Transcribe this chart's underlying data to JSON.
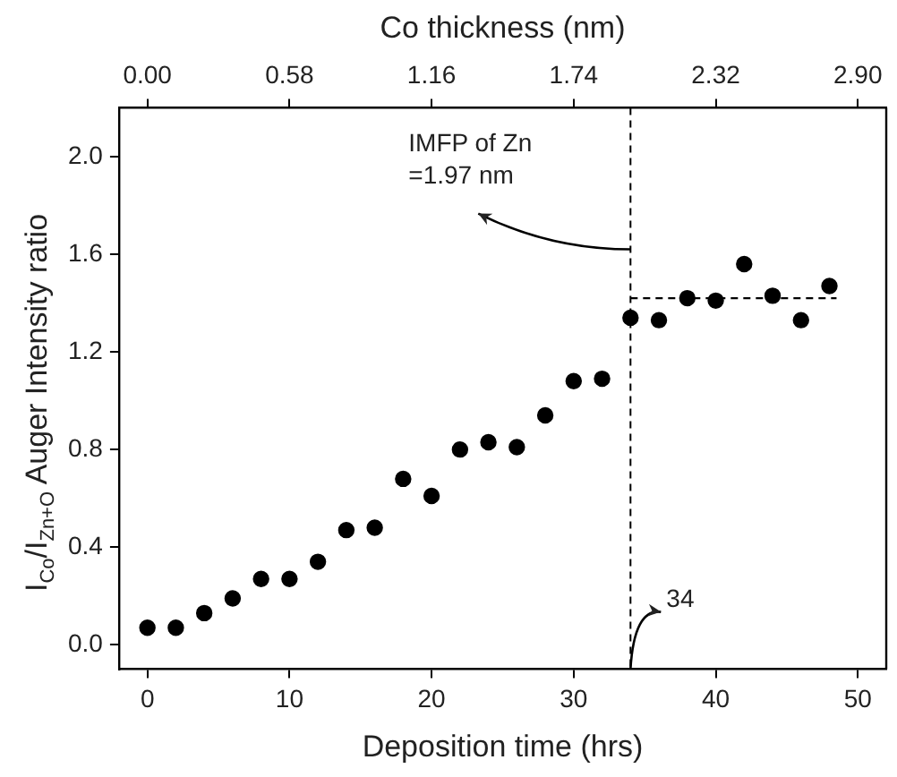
{
  "chart_data": {
    "type": "scatter",
    "xlabel": "Deposition time (hrs)",
    "x2label": "Co thickness (nm)",
    "ylabel": "I$_{Co}$/I$_{Zn+O}$ Auger Intensity ratio",
    "xlim": [
      -2,
      52
    ],
    "xticks": [
      0,
      10,
      20,
      30,
      40,
      50
    ],
    "x2lim": [
      -0.116,
      3.016
    ],
    "x2ticks": [
      {
        "value": 0,
        "label": "0.00"
      },
      {
        "value": 0.58,
        "label": "0.58"
      },
      {
        "value": 1.16,
        "label": "1.16"
      },
      {
        "value": 1.74,
        "label": "1.74"
      },
      {
        "value": 2.32,
        "label": "2.32"
      },
      {
        "value": 2.9,
        "label": "2.90"
      }
    ],
    "ylim": [
      -0.1,
      2.2
    ],
    "yticks": [
      {
        "value": 0,
        "label": "0.0"
      },
      {
        "value": 0.4,
        "label": "0.4"
      },
      {
        "value": 0.8,
        "label": "0.8"
      },
      {
        "value": 1.2,
        "label": "1.2"
      },
      {
        "value": 1.6,
        "label": "1.6"
      },
      {
        "value": 2,
        "label": "2.0"
      }
    ],
    "grid": false,
    "legend": false,
    "marker": "circle",
    "series": [
      {
        "color": "#000000",
        "x": [
          0,
          2,
          4,
          6,
          8,
          10,
          12,
          14,
          16,
          18,
          20,
          22,
          24,
          26,
          28,
          30,
          32,
          34,
          36,
          38,
          40,
          42,
          44,
          46,
          48
        ],
        "values": [
          0.07,
          0.07,
          0.13,
          0.19,
          0.27,
          0.27,
          0.34,
          0.47,
          0.48,
          0.68,
          0.61,
          0.8,
          0.83,
          0.81,
          0.94,
          1.08,
          1.09,
          1.34,
          1.33,
          1.42,
          1.41,
          1.56,
          1.43,
          1.33,
          1.47
        ]
      },
      {
        "type": "line",
        "color": "#000000",
        "line_style": "dashed",
        "marker": "none",
        "x": [
          34,
          48.5
        ],
        "values": [
          1.42,
          1.42
        ]
      }
    ],
    "ref_lines": [
      {
        "axis": "x",
        "value": 34,
        "line_style": "dashed",
        "color": "#000000"
      }
    ],
    "annotations": [
      {
        "text": "IMFP of Zn\n=1.97 nm",
        "x": 34,
        "y": 1.62
      },
      {
        "text": "34",
        "x": 34,
        "y": -0.1
      }
    ]
  }
}
